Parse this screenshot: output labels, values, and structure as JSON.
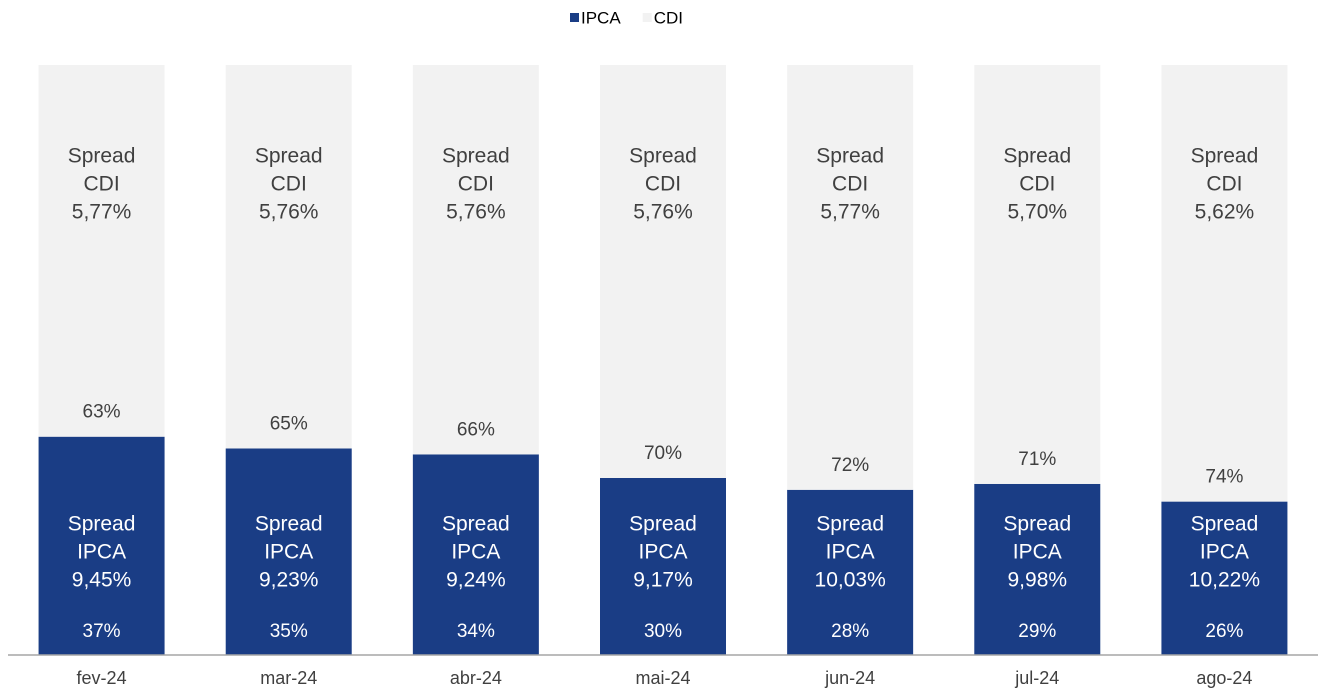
{
  "chart_data": {
    "type": "stacked_bar",
    "categories": [
      "fev-24",
      "mar-24",
      "abr-24",
      "mai-24",
      "jun-24",
      "jul-24",
      "ago-24"
    ],
    "series": [
      {
        "name": "IPCA",
        "color": "#1a3d85",
        "values": [
          37,
          35,
          34,
          30,
          28,
          29,
          26
        ],
        "value_labels": [
          "37%",
          "35%",
          "34%",
          "30%",
          "28%",
          "29%",
          "26%"
        ],
        "annotations": [
          [
            "Spread",
            "IPCA",
            "9,45%"
          ],
          [
            "Spread",
            "IPCA",
            "9,23%"
          ],
          [
            "Spread",
            "IPCA",
            "9,24%"
          ],
          [
            "Spread",
            "IPCA",
            "9,17%"
          ],
          [
            "Spread",
            "IPCA",
            "10,03%"
          ],
          [
            "Spread",
            "IPCA",
            "9,98%"
          ],
          [
            "Spread",
            "IPCA",
            "10,22%"
          ]
        ]
      },
      {
        "name": "CDI",
        "color": "#f2f2f2",
        "values": [
          63,
          65,
          66,
          70,
          72,
          71,
          74
        ],
        "value_labels": [
          "63%",
          "65%",
          "66%",
          "70%",
          "72%",
          "71%",
          "74%"
        ],
        "annotations": [
          [
            "Spread",
            "CDI",
            "5,77%"
          ],
          [
            "Spread",
            "CDI",
            "5,76%"
          ],
          [
            "Spread",
            "CDI",
            "5,76%"
          ],
          [
            "Spread",
            "CDI",
            "5,76%"
          ],
          [
            "Spread",
            "CDI",
            "5,77%"
          ],
          [
            "Spread",
            "CDI",
            "5,70%"
          ],
          [
            "Spread",
            "CDI",
            "5,62%"
          ]
        ]
      }
    ],
    "ylim": [
      0,
      100
    ],
    "legend": "top"
  }
}
